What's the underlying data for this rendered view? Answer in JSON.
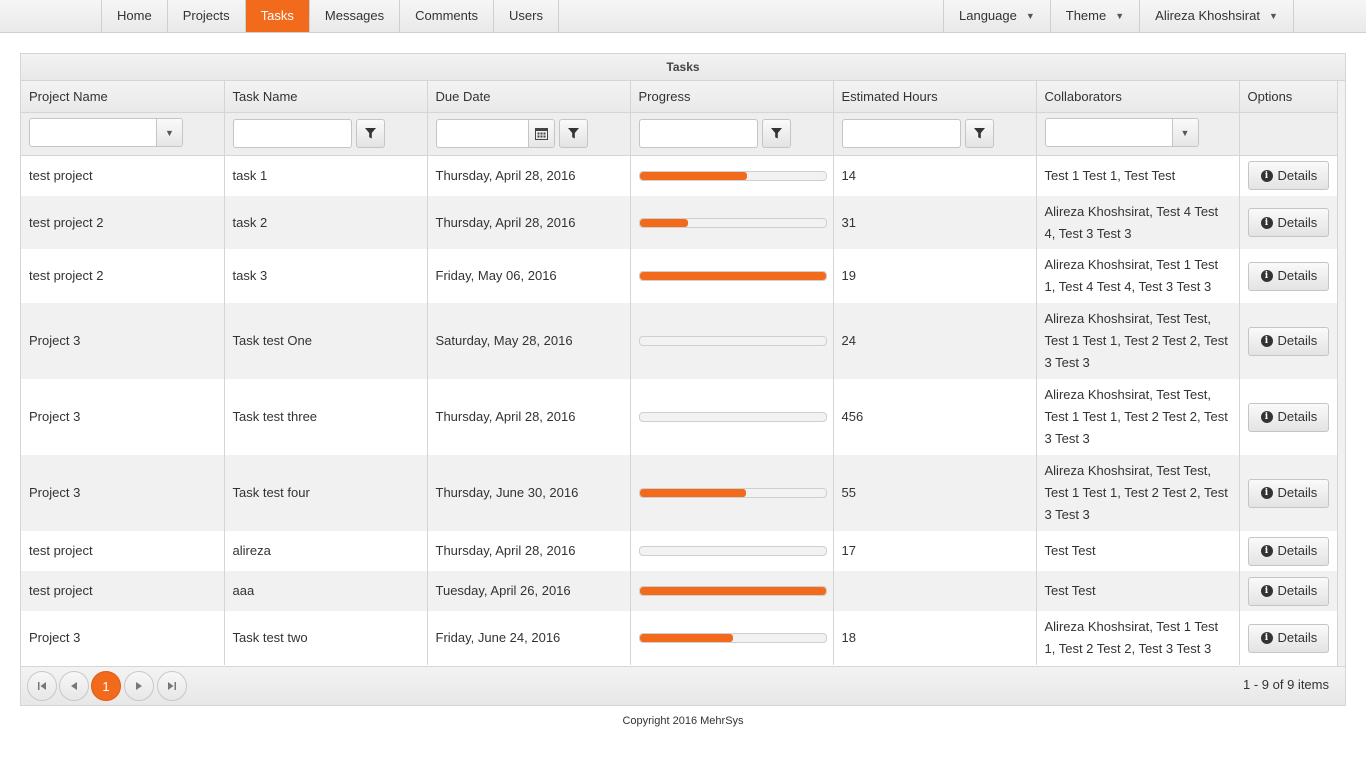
{
  "nav": {
    "left": [
      "Home",
      "Projects",
      "Tasks",
      "Messages",
      "Comments",
      "Users"
    ],
    "active": "Tasks",
    "right": [
      "Language",
      "Theme",
      "Alireza Khoshsirat"
    ]
  },
  "grid": {
    "title": "Tasks",
    "columns": [
      "Project Name",
      "Task Name",
      "Due Date",
      "Progress",
      "Estimated Hours",
      "Collaborators",
      "Options"
    ],
    "details_label": "Details",
    "rows": [
      {
        "project": "test project",
        "task": "task 1",
        "due": "Thursday, April 28, 2016",
        "progress": 0.58,
        "hours": "14",
        "collab": "Test 1 Test 1, Test Test"
      },
      {
        "project": "test project 2",
        "task": "task 2",
        "due": "Thursday, April 28, 2016",
        "progress": 0.26,
        "hours": "31",
        "collab": "Alireza Khoshsirat, Test 4 Test 4, Test 3 Test 3"
      },
      {
        "project": "test project 2",
        "task": "task 3",
        "due": "Friday, May 06, 2016",
        "progress": 1.0,
        "hours": "19",
        "collab": "Alireza Khoshsirat, Test 1 Test 1, Test 4 Test 4, Test 3 Test 3"
      },
      {
        "project": "Project 3",
        "task": "Task test One",
        "due": "Saturday, May 28, 2016",
        "progress": 0.0,
        "hours": "24",
        "collab": "Alireza Khoshsirat, Test Test, Test 1 Test 1, Test 2 Test 2, Test 3 Test 3"
      },
      {
        "project": "Project 3",
        "task": "Task test three",
        "due": "Thursday, April 28, 2016",
        "progress": 0.0,
        "hours": "456",
        "collab": "Alireza Khoshsirat, Test Test, Test 1 Test 1, Test 2 Test 2, Test 3 Test 3"
      },
      {
        "project": "Project 3",
        "task": "Task test four",
        "due": "Thursday, June 30, 2016",
        "progress": 0.57,
        "hours": "55",
        "collab": "Alireza Khoshsirat, Test Test, Test 1 Test 1, Test 2 Test 2, Test 3 Test 3"
      },
      {
        "project": "test project",
        "task": "alireza",
        "due": "Thursday, April 28, 2016",
        "progress": 0.0,
        "hours": "17",
        "collab": "Test Test"
      },
      {
        "project": "test project",
        "task": "aaa",
        "due": "Tuesday, April 26, 2016",
        "progress": 1.0,
        "hours": "",
        "collab": "Test Test"
      },
      {
        "project": "Project 3",
        "task": "Task test two",
        "due": "Friday, June 24, 2016",
        "progress": 0.5,
        "hours": "18",
        "collab": "Alireza Khoshsirat, Test 1 Test 1, Test 2 Test 2, Test 3 Test 3"
      }
    ]
  },
  "pager": {
    "current_page": "1",
    "info": "1 - 9 of 9 items"
  },
  "footer": "Copyright 2016 MehrSys",
  "colors": {
    "accent": "#f26a1b"
  }
}
